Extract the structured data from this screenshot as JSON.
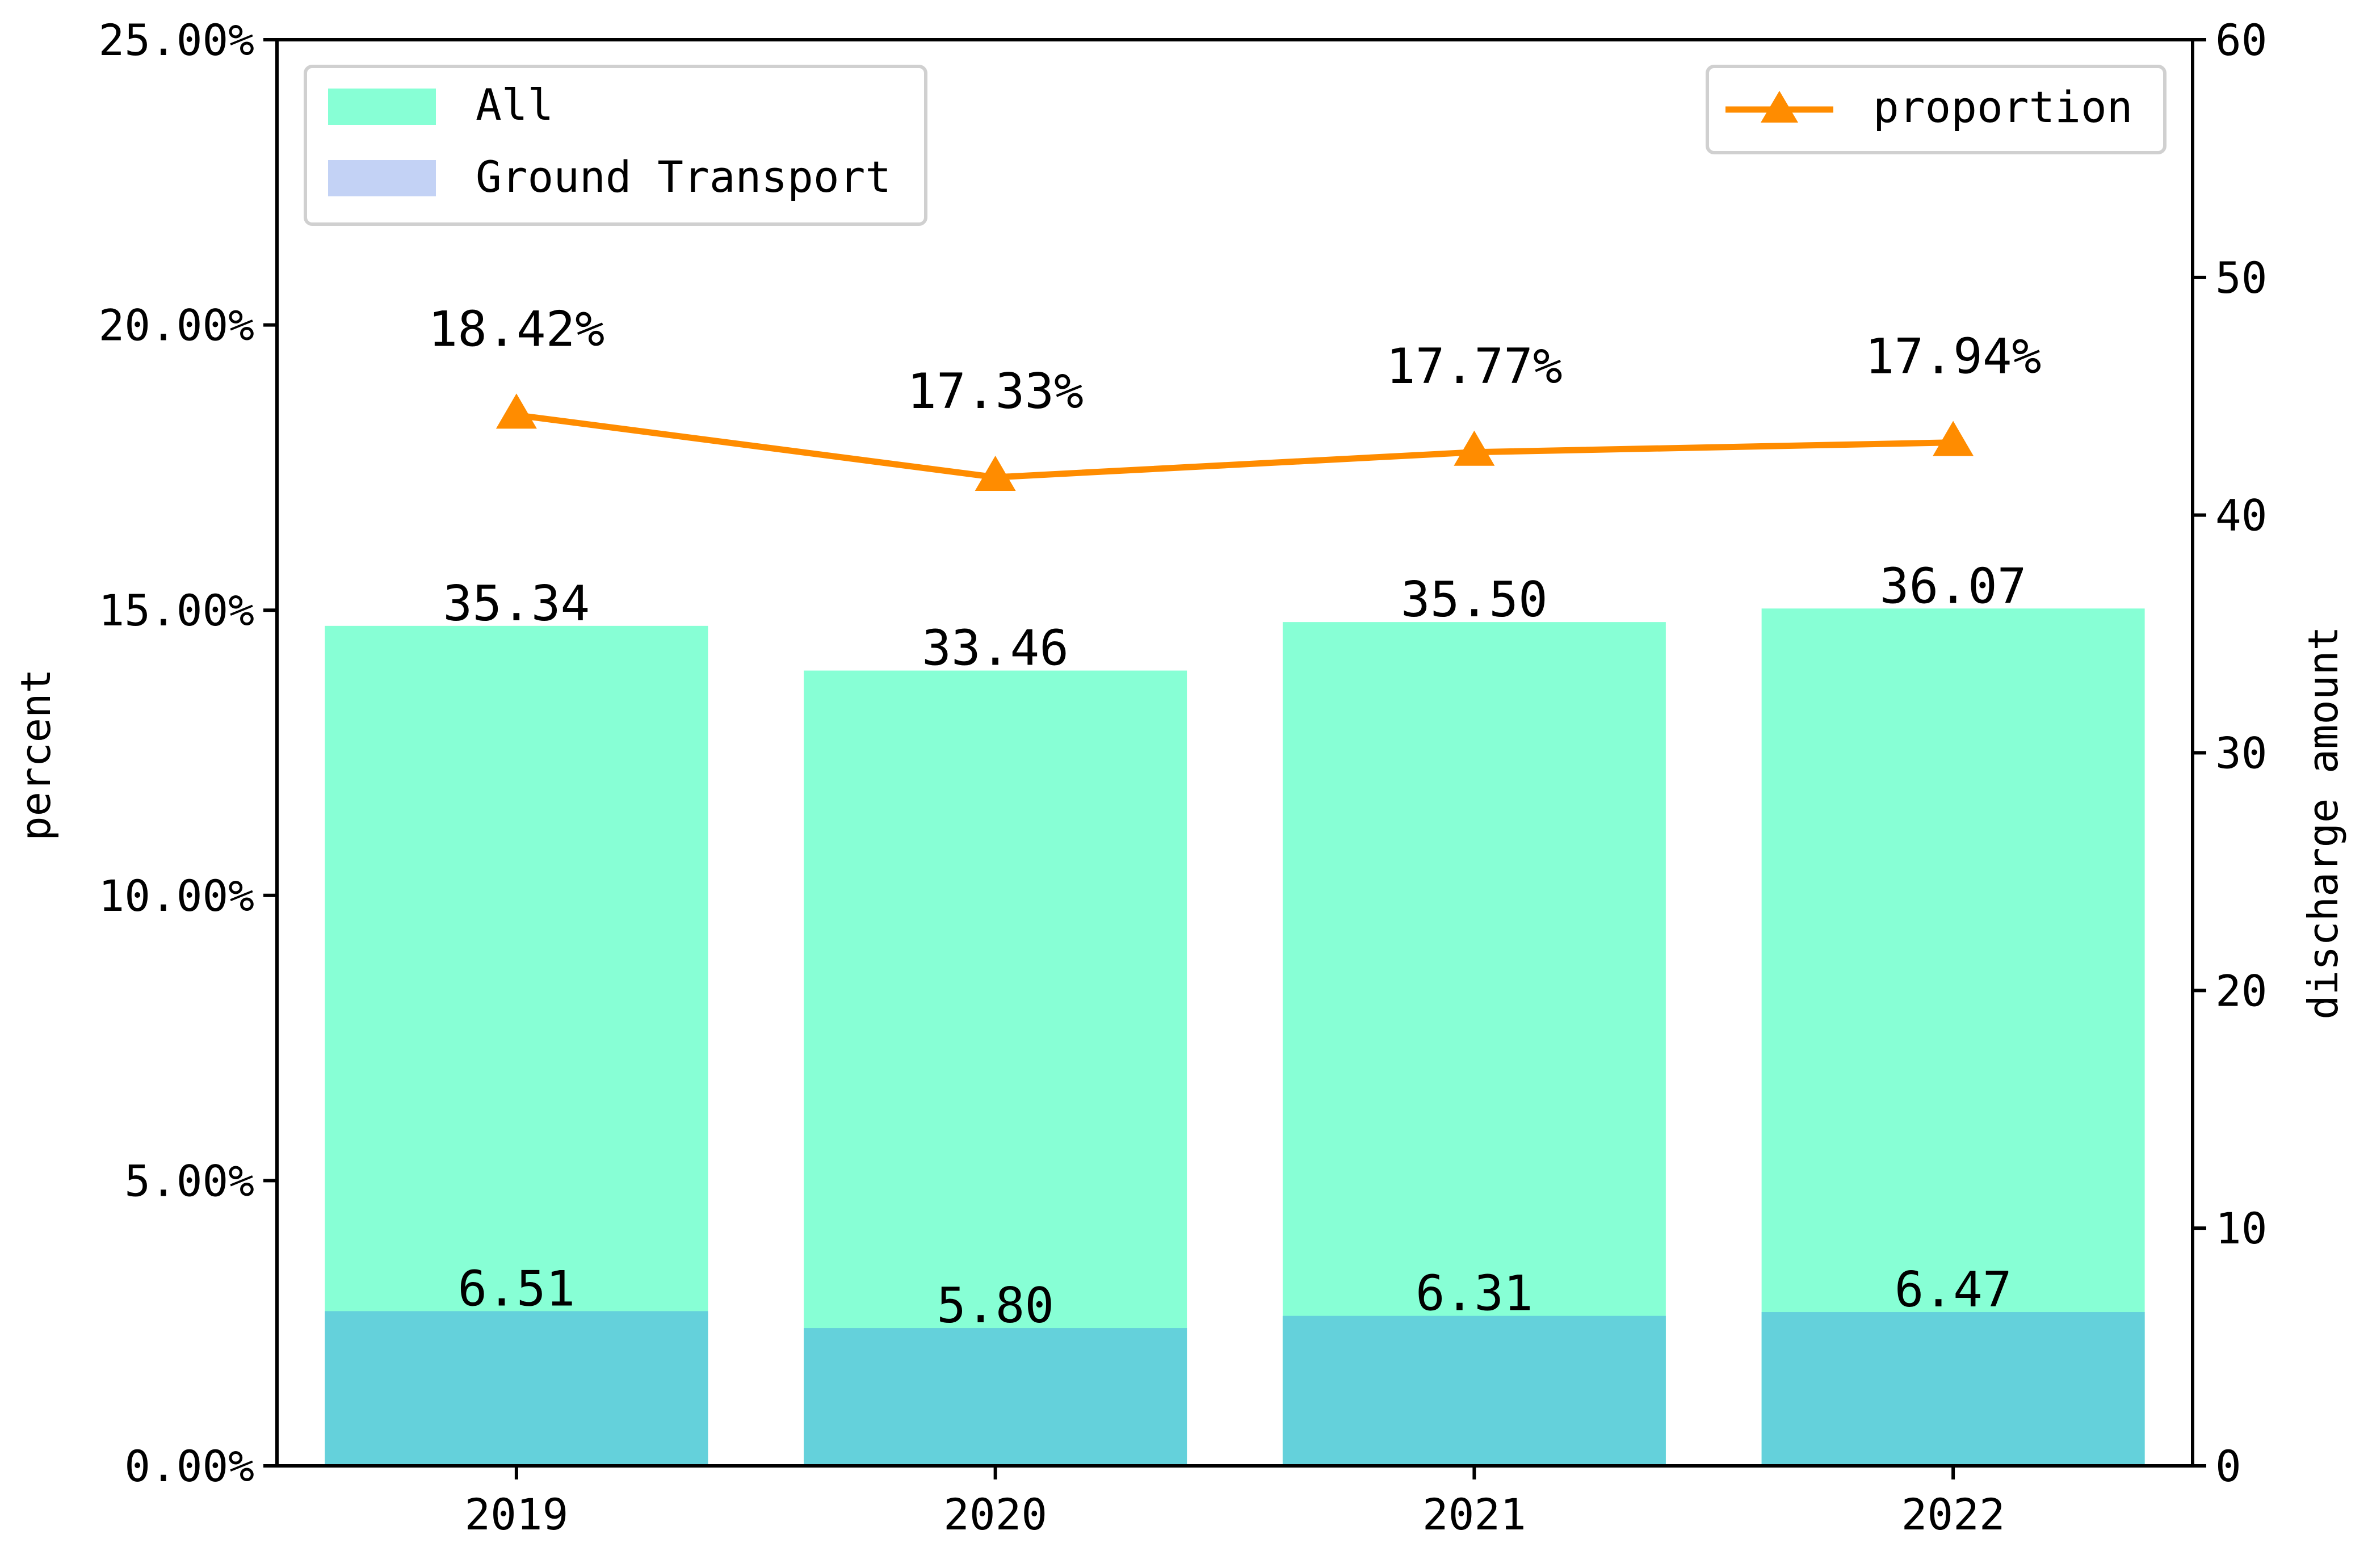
{
  "chart_data": {
    "type": "bar",
    "categories": [
      "2019",
      "2020",
      "2021",
      "2022"
    ],
    "series": [
      {
        "name": "All",
        "axis": "right",
        "values": [
          35.34,
          33.46,
          35.5,
          36.07
        ],
        "labels": [
          "35.34",
          "33.46",
          "35.50",
          "36.07"
        ],
        "color": "#87ffd5"
      },
      {
        "name": "Ground Transport",
        "axis": "right",
        "values": [
          6.51,
          5.8,
          6.31,
          6.47
        ],
        "labels": [
          "6.51",
          "5.80",
          "6.31",
          "6.47"
        ],
        "color": "#c3d2f5",
        "overlap_color": "#64d1db"
      },
      {
        "name": "proportion",
        "type": "line",
        "marker": "triangle",
        "axis": "left",
        "values": [
          18.42,
          17.33,
          17.77,
          17.94
        ],
        "labels": [
          "18.42%",
          "17.33%",
          "17.77%",
          "17.94%"
        ],
        "color": "#ff8c00"
      }
    ],
    "left_axis": {
      "label": "percent",
      "ylim": [
        0,
        25
      ],
      "ticks": [
        "0.00%",
        "5.00%",
        "10.00%",
        "15.00%",
        "20.00%",
        "25.00%"
      ]
    },
    "right_axis": {
      "label": "discharge amount",
      "ylim": [
        0,
        60
      ],
      "ticks": [
        "0",
        "10",
        "20",
        "30",
        "40",
        "50",
        "60"
      ]
    },
    "legend_bars": "upper-left",
    "legend_line": "upper-right",
    "grid": false
  }
}
